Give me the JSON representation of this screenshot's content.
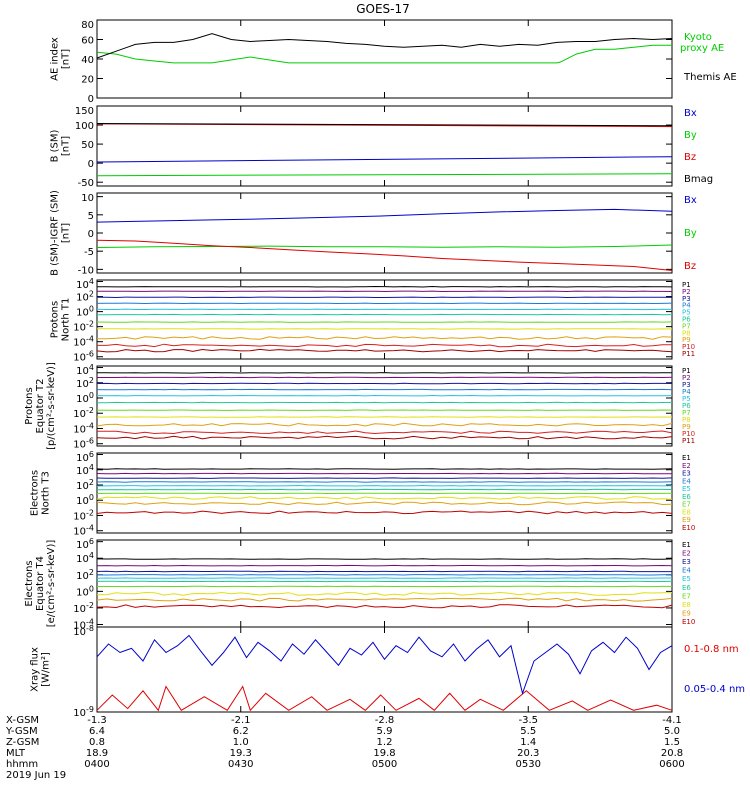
{
  "title": "GOES-17",
  "colors": {
    "black": "#000000",
    "red": "#e00000",
    "green": "#00cc00",
    "blue": "#0000cc",
    "darkred": "#b00000"
  },
  "chart_data": [
    {
      "type": "line",
      "ylabel": "AE index\n[nT]",
      "ylim": [
        0,
        80
      ],
      "yticks": [
        "0",
        "20",
        "40",
        "60",
        "80"
      ],
      "series": [
        {
          "name": "Kyoto\nproxy AE",
          "color": "#00cc00",
          "x": [
            0,
            5,
            10,
            15,
            20,
            30,
            40,
            50,
            60,
            70,
            80,
            90,
            100,
            110,
            120,
            121,
            125,
            130,
            135,
            140,
            145,
            150
          ],
          "values": [
            47,
            45,
            40,
            38,
            36,
            36,
            42,
            36,
            36,
            36,
            36,
            36,
            36,
            36,
            36,
            37,
            45,
            50,
            50,
            52,
            54,
            54
          ]
        },
        {
          "name": "Themis AE",
          "color": "#000000",
          "x": [
            0,
            5,
            10,
            15,
            20,
            25,
            30,
            35,
            40,
            45,
            50,
            55,
            60,
            65,
            70,
            75,
            80,
            85,
            90,
            95,
            100,
            105,
            110,
            115,
            120,
            125,
            130,
            135,
            140,
            145,
            150
          ],
          "values": [
            41,
            48,
            55,
            57,
            57,
            60,
            66,
            60,
            58,
            59,
            60,
            59,
            58,
            56,
            55,
            53,
            52,
            53,
            54,
            52,
            55,
            53,
            55,
            54,
            57,
            58,
            58,
            60,
            61,
            60,
            61
          ]
        }
      ]
    },
    {
      "type": "line",
      "ylabel": "B (SM)\n[nT]",
      "ylim": [
        -60,
        150
      ],
      "yticks": [
        "-50",
        "0",
        "50",
        "100",
        "150"
      ],
      "series": [
        {
          "name": "Bx",
          "color": "#0000cc",
          "x": [
            0,
            150
          ],
          "values": [
            3,
            17
          ]
        },
        {
          "name": "By",
          "color": "#00cc00",
          "x": [
            0,
            150
          ],
          "values": [
            -33,
            -28
          ]
        },
        {
          "name": "Bz",
          "color": "#e00000",
          "x": [
            0,
            150
          ],
          "values": [
            103,
            96
          ]
        },
        {
          "name": "Bmag",
          "color": "#000000",
          "x": [
            0,
            150
          ],
          "values": [
            104,
            98
          ]
        }
      ]
    },
    {
      "type": "line",
      "ylabel": "B (SM)-IGRF (SM)\n[nT]",
      "ylim": [
        -11,
        11
      ],
      "yticks": [
        "-10",
        "-5",
        "0",
        "5",
        "10"
      ],
      "series": [
        {
          "name": "Bx",
          "color": "#0000cc",
          "x": [
            0,
            15,
            30,
            45,
            60,
            75,
            90,
            105,
            120,
            135,
            150
          ],
          "values": [
            3,
            3.3,
            3.6,
            3.9,
            4.3,
            4.7,
            5.3,
            5.8,
            6.2,
            6.5,
            6
          ]
        },
        {
          "name": "By",
          "color": "#00cc00",
          "x": [
            0,
            15,
            30,
            45,
            60,
            75,
            90,
            105,
            120,
            135,
            150
          ],
          "values": [
            -4,
            -3.8,
            -3.7,
            -3.6,
            -3.8,
            -3.8,
            -3.9,
            -3.8,
            -3.9,
            -3.7,
            -3.3
          ]
        },
        {
          "name": "Bz",
          "color": "#e00000",
          "x": [
            0,
            10,
            20,
            30,
            40,
            50,
            60,
            70,
            80,
            90,
            100,
            110,
            120,
            130,
            140,
            150
          ],
          "values": [
            -2,
            -2.2,
            -2.8,
            -3.5,
            -4,
            -4.6,
            -5.2,
            -5.7,
            -6.3,
            -7,
            -7.5,
            -8,
            -8.4,
            -8.8,
            -9.2,
            -10.3
          ]
        }
      ]
    },
    {
      "type": "line",
      "yscale": "log",
      "ylabel": "Protons\nNorth T1",
      "ylog_range": [
        -6.3,
        4.2
      ],
      "yticks": [
        "10^4",
        "10^2",
        "10^0",
        "10^-2",
        "10^-4",
        "10^-6"
      ],
      "channels": [
        {
          "name": "P1",
          "color": "#000000",
          "level": 3.3
        },
        {
          "name": "P2",
          "color": "#7a0a7a",
          "level": 2.7
        },
        {
          "name": "P3",
          "color": "#1414a0",
          "level": 1.9
        },
        {
          "name": "P4",
          "color": "#1a7adc",
          "level": 1.1
        },
        {
          "name": "P5",
          "color": "#22c4e6",
          "level": 0.3
        },
        {
          "name": "P6",
          "color": "#1ec896",
          "level": -0.4
        },
        {
          "name": "P7",
          "color": "#66d822",
          "level": -1.4
        },
        {
          "name": "P8",
          "color": "#e0e012",
          "level": -2.3
        },
        {
          "name": "P9",
          "color": "#e0a012",
          "level": -3.5
        },
        {
          "name": "P10",
          "color": "#d82020",
          "level": -4.5
        },
        {
          "name": "P11",
          "color": "#a00000",
          "level": -5.2
        }
      ]
    },
    {
      "type": "line",
      "yscale": "log",
      "ylabel": "Protons\nEquator T2\n[p/(cm²-s-sr-keV)]",
      "ylog_range": [
        -6.3,
        4.2
      ],
      "yticks": [
        "10^4",
        "10^2",
        "10^0",
        "10^-2",
        "10^-4",
        "10^-6"
      ],
      "channels": [
        {
          "name": "P1",
          "color": "#000000",
          "level": 3.3
        },
        {
          "name": "P2",
          "color": "#7a0a7a",
          "level": 2.7
        },
        {
          "name": "P3",
          "color": "#1414a0",
          "level": 1.9
        },
        {
          "name": "P4",
          "color": "#1a7adc",
          "level": 1.1
        },
        {
          "name": "P5",
          "color": "#22c4e6",
          "level": 0.3
        },
        {
          "name": "P6",
          "color": "#1ec896",
          "level": -0.6
        },
        {
          "name": "P7",
          "color": "#66d822",
          "level": -1.6
        },
        {
          "name": "P8",
          "color": "#e0e012",
          "level": -2.5
        },
        {
          "name": "P9",
          "color": "#e0a012",
          "level": -3.5
        },
        {
          "name": "P10",
          "color": "#d82020",
          "level": -4.5
        },
        {
          "name": "P11",
          "color": "#a00000",
          "level": -5.2
        }
      ]
    },
    {
      "type": "line",
      "yscale": "log",
      "ylabel": "Electrons\nNorth T3",
      "ylog_range": [
        -4.3,
        6.2
      ],
      "yticks": [
        "10^6",
        "10^4",
        "10^2",
        "10^0",
        "10^-2",
        "10^-4"
      ],
      "channels": [
        {
          "name": "E1",
          "color": "#000000",
          "level": 4.1
        },
        {
          "name": "E2",
          "color": "#7a0a7a",
          "level": 3.5
        },
        {
          "name": "E3",
          "color": "#1414a0",
          "level": 2.9
        },
        {
          "name": "E4",
          "color": "#1a7adc",
          "level": 2.4
        },
        {
          "name": "E5",
          "color": "#22c4e6",
          "level": 1.9
        },
        {
          "name": "E6",
          "color": "#1ec896",
          "level": 1.4
        },
        {
          "name": "E7",
          "color": "#66d822",
          "level": 0.9
        },
        {
          "name": "E8",
          "color": "#e0e012",
          "level": 0.3
        },
        {
          "name": "E9",
          "color": "#e0a012",
          "level": -0.4
        },
        {
          "name": "E10",
          "color": "#c00000",
          "level": -1.6
        }
      ]
    },
    {
      "type": "line",
      "yscale": "log",
      "ylabel": "Electrons\nEquator T4\n[e/(cm²-s-sr-keV)]",
      "ylog_range": [
        -4.3,
        6.2
      ],
      "yticks": [
        "10^6",
        "10^4",
        "10^2",
        "10^0",
        "10^-2",
        "10^-4"
      ],
      "channels": [
        {
          "name": "E1",
          "color": "#000000",
          "level": 3.9
        },
        {
          "name": "E2",
          "color": "#7a0a7a",
          "level": 3.1
        },
        {
          "name": "E3",
          "color": "#1414a0",
          "level": 2.4
        },
        {
          "name": "E4",
          "color": "#1a7adc",
          "level": 2.0
        },
        {
          "name": "E5",
          "color": "#22c4e6",
          "level": 1.6
        },
        {
          "name": "E6",
          "color": "#1ec896",
          "level": 1.2
        },
        {
          "name": "E7",
          "color": "#66d822",
          "level": 0.6
        },
        {
          "name": "E8",
          "color": "#e0e012",
          "level": -0.3
        },
        {
          "name": "E9",
          "color": "#e0a012",
          "level": -1.0
        },
        {
          "name": "E10",
          "color": "#c00000",
          "level": -1.8
        }
      ]
    },
    {
      "type": "line",
      "yscale": "log",
      "ylabel": "Xray flux\n[W/m²]",
      "ylog_range": [
        -9,
        -8
      ],
      "yticks": [
        "10^-8",
        "10^-9"
      ],
      "series": [
        {
          "name": "0.1-0.8 nm",
          "color": "#e00000",
          "x": [
            0,
            4,
            8,
            12,
            16,
            18,
            22,
            28,
            34,
            38,
            40,
            44,
            50,
            56,
            60,
            66,
            70,
            74,
            78,
            84,
            88,
            92,
            96,
            100,
            106,
            112,
            118,
            124,
            128,
            134,
            140,
            146,
            150
          ],
          "values": [
            -8.98,
            -8.8,
            -8.96,
            -8.75,
            -8.98,
            -8.7,
            -8.98,
            -8.82,
            -8.98,
            -8.7,
            -8.98,
            -8.78,
            -8.98,
            -8.82,
            -8.98,
            -8.85,
            -8.98,
            -8.8,
            -8.98,
            -8.84,
            -8.98,
            -8.78,
            -8.98,
            -8.85,
            -8.98,
            -8.75,
            -8.98,
            -8.87,
            -8.98,
            -8.86,
            -8.98,
            -8.92,
            -8.98
          ]
        },
        {
          "name": "0.05-0.4 nm",
          "color": "#0000cc",
          "x": [
            0,
            3,
            6,
            9,
            12,
            15,
            18,
            21,
            24,
            27,
            30,
            33,
            36,
            39,
            42,
            45,
            48,
            51,
            54,
            57,
            60,
            63,
            66,
            69,
            72,
            75,
            78,
            81,
            84,
            87,
            90,
            93,
            96,
            99,
            102,
            105,
            108,
            111,
            114,
            117,
            120,
            123,
            126,
            129,
            132,
            135,
            138,
            141,
            144,
            147,
            150
          ],
          "values": [
            -8.35,
            -8.2,
            -8.3,
            -8.25,
            -8.4,
            -8.15,
            -8.3,
            -8.22,
            -8.1,
            -8.28,
            -8.45,
            -8.3,
            -8.12,
            -8.36,
            -8.18,
            -8.28,
            -8.4,
            -8.2,
            -8.32,
            -8.15,
            -8.3,
            -8.45,
            -8.25,
            -8.33,
            -8.18,
            -8.38,
            -8.22,
            -8.3,
            -8.12,
            -8.28,
            -8.35,
            -8.2,
            -8.4,
            -8.26,
            -8.15,
            -8.35,
            -8.22,
            -8.78,
            -8.4,
            -8.3,
            -8.2,
            -8.32,
            -8.55,
            -8.28,
            -8.18,
            -8.3,
            -8.12,
            -8.25,
            -8.5,
            -8.3,
            -8.22
          ]
        }
      ]
    }
  ],
  "x_axis": {
    "rows": [
      {
        "label": "X-GSM",
        "values": [
          "-1.3",
          "-2.1",
          "-2.8",
          "-3.5",
          "-4.1"
        ]
      },
      {
        "label": "Y-GSM",
        "values": [
          "6.4",
          "6.2",
          "5.9",
          "5.5",
          "5.0"
        ]
      },
      {
        "label": "Z-GSM",
        "values": [
          "0.8",
          "1.0",
          "1.2",
          "1.4",
          "1.5"
        ]
      },
      {
        "label": "MLT",
        "values": [
          "18.9",
          "19.3",
          "19.8",
          "20.3",
          "20.8"
        ]
      },
      {
        "label": "hhmm",
        "values": [
          "0400",
          "0430",
          "0500",
          "0530",
          "0600"
        ]
      }
    ],
    "date": "2019 Jun 19"
  }
}
